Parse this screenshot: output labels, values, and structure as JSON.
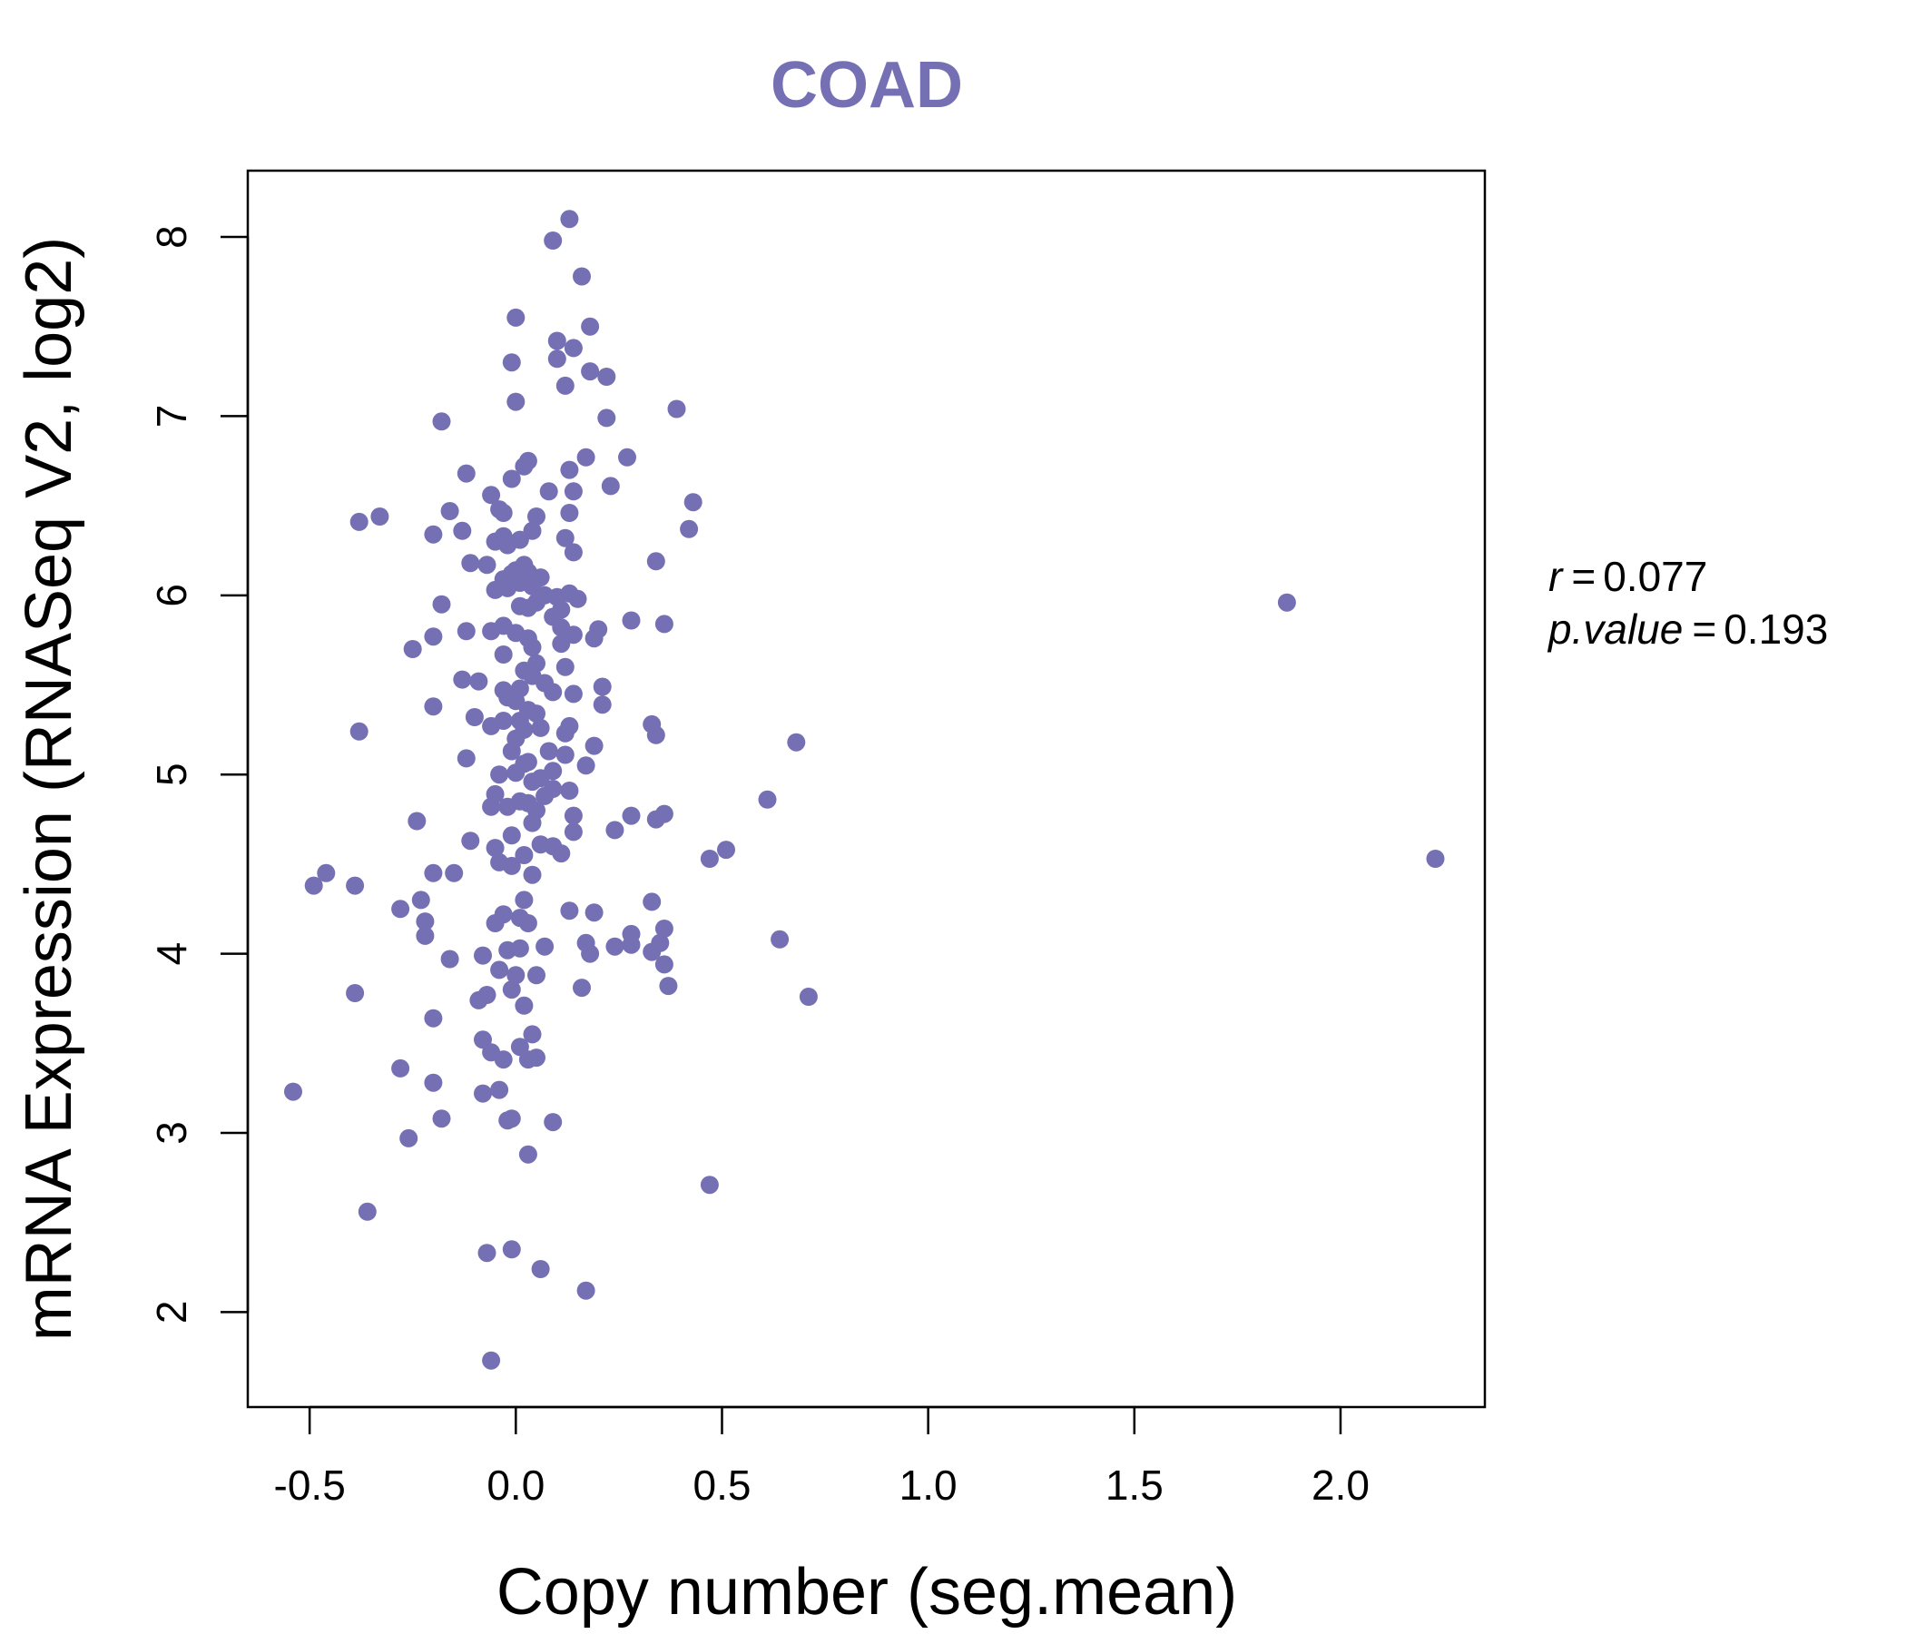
{
  "chart_data": {
    "type": "scatter",
    "title": "COAD",
    "xlabel": "Copy number (seg.mean)",
    "ylabel": "mRNA Expression (RNASeq V2, log2)",
    "xlim": [
      -0.65,
      2.35
    ],
    "ylim": [
      1.47,
      8.37
    ],
    "x_ticks": [
      -0.5,
      0.0,
      0.5,
      1.0,
      1.5,
      2.0
    ],
    "x_tick_labels": [
      "-0.5",
      "0.0",
      "0.5",
      "1.0",
      "1.5",
      "2.0"
    ],
    "y_ticks": [
      2,
      3,
      4,
      5,
      6,
      7,
      8
    ],
    "y_tick_labels": [
      "2",
      "3",
      "4",
      "5",
      "6",
      "7",
      "8"
    ],
    "grid": false,
    "colors": {
      "points": "#7570B3",
      "title": "#7570B3",
      "axis": "#000000"
    },
    "stats": {
      "r_label": "r",
      "r_value": "0.077",
      "p_label": "p.value",
      "p_value": "0.193"
    },
    "points": [
      [
        0.13,
        8.1
      ],
      [
        0.09,
        7.98
      ],
      [
        0.16,
        7.78
      ],
      [
        0.0,
        7.55
      ],
      [
        0.18,
        7.5
      ],
      [
        0.1,
        7.42
      ],
      [
        0.14,
        7.38
      ],
      [
        0.1,
        7.32
      ],
      [
        -0.01,
        7.3
      ],
      [
        0.18,
        7.25
      ],
      [
        0.22,
        7.22
      ],
      [
        0.12,
        7.17
      ],
      [
        0.0,
        7.08
      ],
      [
        0.39,
        7.04
      ],
      [
        0.22,
        6.99
      ],
      [
        -0.18,
        6.97
      ],
      [
        0.17,
        6.77
      ],
      [
        0.27,
        6.77
      ],
      [
        0.03,
        6.75
      ],
      [
        0.02,
        6.72
      ],
      [
        0.13,
        6.7
      ],
      [
        -0.12,
        6.68
      ],
      [
        -0.01,
        6.65
      ],
      [
        0.23,
        6.61
      ],
      [
        0.08,
        6.58
      ],
      [
        0.14,
        6.58
      ],
      [
        -0.06,
        6.56
      ],
      [
        0.43,
        6.52
      ],
      [
        -0.04,
        6.48
      ],
      [
        -0.16,
        6.47
      ],
      [
        0.13,
        6.46
      ],
      [
        -0.03,
        6.46
      ],
      [
        -0.33,
        6.44
      ],
      [
        0.05,
        6.44
      ],
      [
        -0.38,
        6.41
      ],
      [
        0.42,
        6.37
      ],
      [
        -0.13,
        6.36
      ],
      [
        0.04,
        6.36
      ],
      [
        -0.2,
        6.34
      ],
      [
        -0.03,
        6.33
      ],
      [
        0.12,
        6.32
      ],
      [
        0.01,
        6.31
      ],
      [
        -0.05,
        6.3
      ],
      [
        -0.02,
        6.28
      ],
      [
        0.14,
        6.24
      ],
      [
        0.34,
        6.19
      ],
      [
        -0.11,
        6.18
      ],
      [
        -0.07,
        6.17
      ],
      [
        0.02,
        6.17
      ],
      [
        0.0,
        6.14
      ],
      [
        0.03,
        6.13
      ],
      [
        -0.01,
        6.12
      ],
      [
        0.06,
        6.1
      ],
      [
        -0.03,
        6.09
      ],
      [
        0.01,
        6.07
      ],
      [
        0.04,
        6.05
      ],
      [
        -0.02,
        6.04
      ],
      [
        -0.05,
        6.03
      ],
      [
        0.13,
        6.01
      ],
      [
        0.07,
        6.0
      ],
      [
        0.1,
        5.99
      ],
      [
        0.15,
        5.98
      ],
      [
        0.05,
        5.96
      ],
      [
        -0.18,
        5.95
      ],
      [
        0.01,
        5.94
      ],
      [
        0.03,
        5.93
      ],
      [
        0.11,
        5.92
      ],
      [
        0.09,
        5.88
      ],
      [
        0.28,
        5.86
      ],
      [
        0.36,
        5.84
      ],
      [
        -0.03,
        5.83
      ],
      [
        0.11,
        5.82
      ],
      [
        0.2,
        5.81
      ],
      [
        -0.06,
        5.8
      ],
      [
        -0.12,
        5.8
      ],
      [
        0.0,
        5.79
      ],
      [
        0.14,
        5.78
      ],
      [
        -0.2,
        5.77
      ],
      [
        0.03,
        5.76
      ],
      [
        0.19,
        5.76
      ],
      [
        0.11,
        5.73
      ],
      [
        0.04,
        5.71
      ],
      [
        -0.25,
        5.7
      ],
      [
        -0.03,
        5.67
      ],
      [
        0.05,
        5.62
      ],
      [
        0.12,
        5.6
      ],
      [
        0.02,
        5.58
      ],
      [
        0.04,
        5.55
      ],
      [
        -0.13,
        5.53
      ],
      [
        -0.09,
        5.52
      ],
      [
        0.07,
        5.51
      ],
      [
        0.21,
        5.49
      ],
      [
        0.01,
        5.48
      ],
      [
        -0.03,
        5.47
      ],
      [
        0.09,
        5.46
      ],
      [
        0.14,
        5.45
      ],
      [
        -0.02,
        5.43
      ],
      [
        0.0,
        5.41
      ],
      [
        0.21,
        5.39
      ],
      [
        -0.2,
        5.38
      ],
      [
        0.03,
        5.36
      ],
      [
        0.05,
        5.34
      ],
      [
        -0.1,
        5.32
      ],
      [
        0.01,
        5.3
      ],
      [
        -0.03,
        5.3
      ],
      [
        0.33,
        5.28
      ],
      [
        0.13,
        5.27
      ],
      [
        -0.06,
        5.27
      ],
      [
        0.06,
        5.26
      ],
      [
        0.02,
        5.25
      ],
      [
        0.12,
        5.23
      ],
      [
        0.34,
        5.22
      ],
      [
        -0.38,
        5.24
      ],
      [
        0.0,
        5.2
      ],
      [
        0.68,
        5.18
      ],
      [
        0.19,
        5.16
      ],
      [
        0.08,
        5.13
      ],
      [
        -0.01,
        5.13
      ],
      [
        0.12,
        5.11
      ],
      [
        -0.12,
        5.09
      ],
      [
        0.03,
        5.07
      ],
      [
        0.02,
        5.06
      ],
      [
        0.17,
        5.05
      ],
      [
        0.09,
        5.02
      ],
      [
        0.0,
        5.01
      ],
      [
        -0.04,
        5.0
      ],
      [
        0.06,
        4.98
      ],
      [
        0.04,
        4.96
      ],
      [
        0.09,
        4.92
      ],
      [
        0.13,
        4.91
      ],
      [
        -0.05,
        4.89
      ],
      [
        0.07,
        4.88
      ],
      [
        0.61,
        4.86
      ],
      [
        0.01,
        4.85
      ],
      [
        0.03,
        4.84
      ],
      [
        -0.06,
        4.82
      ],
      [
        -0.02,
        4.82
      ],
      [
        0.05,
        4.8
      ],
      [
        0.36,
        4.78
      ],
      [
        0.14,
        4.77
      ],
      [
        0.28,
        4.77
      ],
      [
        0.34,
        4.75
      ],
      [
        -0.24,
        4.74
      ],
      [
        0.04,
        4.73
      ],
      [
        0.24,
        4.69
      ],
      [
        0.14,
        4.68
      ],
      [
        -0.01,
        4.66
      ],
      [
        -0.11,
        4.63
      ],
      [
        0.06,
        4.61
      ],
      [
        0.09,
        4.6
      ],
      [
        0.51,
        4.58
      ],
      [
        -0.05,
        4.59
      ],
      [
        0.11,
        4.56
      ],
      [
        0.47,
        4.53
      ],
      [
        2.23,
        4.53
      ],
      [
        0.02,
        4.55
      ],
      [
        -0.04,
        4.51
      ],
      [
        -0.01,
        4.49
      ],
      [
        -0.46,
        4.45
      ],
      [
        -0.2,
        4.45
      ],
      [
        -0.15,
        4.45
      ],
      [
        0.04,
        4.44
      ],
      [
        -0.49,
        4.38
      ],
      [
        -0.39,
        4.38
      ],
      [
        0.02,
        4.3
      ],
      [
        -0.23,
        4.3
      ],
      [
        0.33,
        4.29
      ],
      [
        -0.28,
        4.25
      ],
      [
        0.13,
        4.24
      ],
      [
        0.19,
        4.23
      ],
      [
        -0.03,
        4.22
      ],
      [
        0.01,
        4.2
      ],
      [
        -0.22,
        4.18
      ],
      [
        -0.05,
        4.17
      ],
      [
        0.03,
        4.17
      ],
      [
        0.36,
        4.14
      ],
      [
        0.28,
        4.11
      ],
      [
        -0.22,
        4.1
      ],
      [
        0.64,
        4.08
      ],
      [
        0.17,
        4.06
      ],
      [
        0.35,
        4.06
      ],
      [
        0.28,
        4.05
      ],
      [
        0.24,
        4.04
      ],
      [
        0.07,
        4.04
      ],
      [
        0.01,
        4.03
      ],
      [
        -0.02,
        4.02
      ],
      [
        0.33,
        4.01
      ],
      [
        0.18,
        4.0
      ],
      [
        -0.08,
        3.99
      ],
      [
        -0.16,
        3.97
      ],
      [
        0.36,
        3.94
      ],
      [
        -0.04,
        3.91
      ],
      [
        0.0,
        3.88
      ],
      [
        0.05,
        3.88
      ],
      [
        0.37,
        3.82
      ],
      [
        0.16,
        3.81
      ],
      [
        -0.01,
        3.8
      ],
      [
        -0.39,
        3.78
      ],
      [
        -0.07,
        3.77
      ],
      [
        0.71,
        3.76
      ],
      [
        -0.09,
        3.74
      ],
      [
        0.02,
        3.71
      ],
      [
        -0.2,
        3.64
      ],
      [
        0.04,
        3.55
      ],
      [
        -0.08,
        3.52
      ],
      [
        0.01,
        3.48
      ],
      [
        -0.06,
        3.45
      ],
      [
        0.05,
        3.42
      ],
      [
        0.03,
        3.41
      ],
      [
        -0.03,
        3.41
      ],
      [
        -0.28,
        3.36
      ],
      [
        -0.2,
        3.28
      ],
      [
        -0.54,
        3.23
      ],
      [
        -0.04,
        3.24
      ],
      [
        -0.08,
        3.22
      ],
      [
        -0.18,
        3.08
      ],
      [
        -0.01,
        3.08
      ],
      [
        0.09,
        3.06
      ],
      [
        -0.02,
        3.07
      ],
      [
        -0.26,
        2.97
      ],
      [
        0.03,
        2.88
      ],
      [
        0.47,
        2.71
      ],
      [
        -0.36,
        2.56
      ],
      [
        -0.01,
        2.35
      ],
      [
        -0.07,
        2.33
      ],
      [
        0.06,
        2.24
      ],
      [
        0.17,
        2.12
      ],
      [
        1.87,
        5.96
      ],
      [
        -0.06,
        1.73
      ]
    ]
  }
}
